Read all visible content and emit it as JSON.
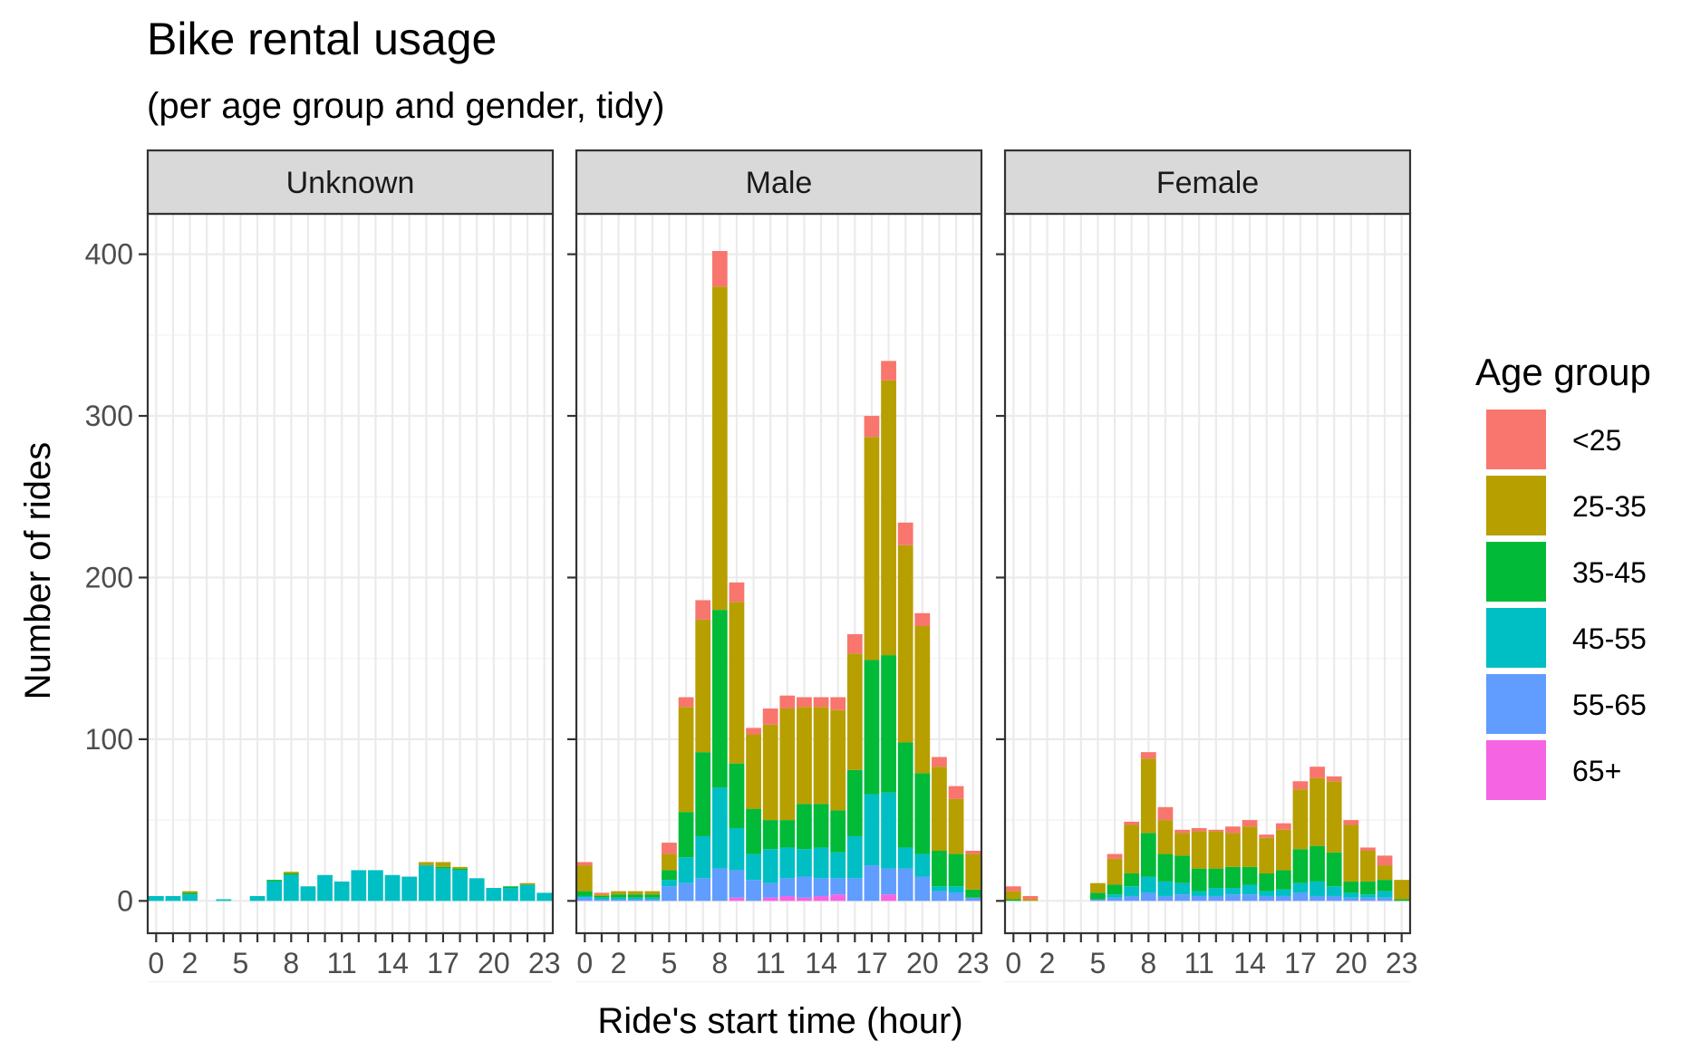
{
  "chart_data": {
    "type": "bar",
    "stacked": true,
    "title": "Bike rental usage",
    "subtitle": "(per age group and gender, tidy)",
    "xlabel": "Ride's start time (hour)",
    "ylabel": "Number of rides",
    "xlim": [
      -0.5,
      23.5
    ],
    "ylim": [
      -20,
      425
    ],
    "x_tick_labels": [
      "0",
      "2",
      "5",
      "8",
      "11",
      "14",
      "17",
      "20",
      "23"
    ],
    "x_tick_values": [
      0,
      2,
      5,
      8,
      11,
      14,
      17,
      20,
      23
    ],
    "y_ticks": [
      0,
      100,
      200,
      300,
      400
    ],
    "y_tick_labels": [
      "0",
      "100",
      "200",
      "300",
      "400"
    ],
    "grid": true,
    "legend": {
      "title": "Age group",
      "position": "right",
      "entries": [
        {
          "label": "<25",
          "color": "#F8766D"
        },
        {
          "label": "25-35",
          "color": "#B79F00"
        },
        {
          "label": "35-45",
          "color": "#00BA38"
        },
        {
          "label": "45-55",
          "color": "#00BFC4"
        },
        {
          "label": "55-65",
          "color": "#619CFF"
        },
        {
          "label": "65+",
          "color": "#F564E3"
        }
      ]
    },
    "stack_order_bottom_to_top": [
      "65+",
      "55-65",
      "45-55",
      "35-45",
      "25-35",
      "<25"
    ],
    "panels": [
      {
        "name": "Unknown",
        "series": [
          {
            "name": "65+",
            "values": [
              0,
              0,
              0,
              0,
              0,
              0,
              0,
              0,
              0,
              0,
              0,
              0,
              0,
              0,
              0,
              0,
              0,
              0,
              0,
              0,
              0,
              0,
              0,
              0
            ]
          },
          {
            "name": "55-65",
            "values": [
              0,
              0,
              0,
              0,
              0,
              0,
              0,
              0,
              0,
              0,
              0,
              0,
              0,
              0,
              0,
              0,
              0,
              0,
              0,
              0,
              0,
              0,
              0,
              0
            ]
          },
          {
            "name": "45-55",
            "values": [
              3,
              3,
              4,
              0,
              1,
              0,
              3,
              12,
              16,
              9,
              16,
              12,
              19,
              19,
              16,
              15,
              22,
              20,
              19,
              14,
              8,
              8,
              10,
              5
            ]
          },
          {
            "name": "35-45",
            "values": [
              0,
              0,
              1,
              0,
              0,
              0,
              0,
              1,
              1,
              0,
              0,
              0,
              0,
              0,
              0,
              0,
              0,
              1,
              1,
              0,
              0,
              1,
              0,
              0
            ]
          },
          {
            "name": "25-35",
            "values": [
              0,
              0,
              1,
              0,
              0,
              0,
              0,
              0,
              1,
              0,
              0,
              0,
              0,
              0,
              0,
              0,
              2,
              3,
              1,
              0,
              0,
              0,
              1,
              0
            ]
          },
          {
            "name": "<25",
            "values": [
              0,
              0,
              0,
              0,
              0,
              0,
              0,
              0,
              0,
              0,
              0,
              0,
              0,
              0,
              0,
              0,
              0,
              0,
              0,
              0,
              0,
              0,
              0,
              0
            ]
          }
        ]
      },
      {
        "name": "Male",
        "series": [
          {
            "name": "65+",
            "values": [
              0,
              0,
              0,
              0,
              0,
              0,
              0,
              0,
              0,
              2,
              0,
              2,
              3,
              2,
              3,
              4,
              0,
              0,
              4,
              0,
              0,
              0,
              0,
              0
            ]
          },
          {
            "name": "55-65",
            "values": [
              2,
              1,
              1,
              1,
              1,
              9,
              11,
              14,
              20,
              17,
              13,
              9,
              11,
              13,
              11,
              10,
              14,
              22,
              16,
              20,
              15,
              6,
              5,
              2
            ]
          },
          {
            "name": "45-55",
            "values": [
              1,
              1,
              1,
              1,
              1,
              4,
              16,
              26,
              50,
              26,
              16,
              21,
              19,
              17,
              19,
              16,
              26,
              44,
              47,
              13,
              14,
              3,
              4,
              0
            ]
          },
          {
            "name": "35-45",
            "values": [
              3,
              1,
              2,
              2,
              2,
              6,
              28,
              52,
              110,
              40,
              28,
              18,
              17,
              28,
              27,
              26,
              41,
              83,
              85,
              65,
              50,
              22,
              20,
              5
            ]
          },
          {
            "name": "25-35",
            "values": [
              16,
              1,
              2,
              2,
              2,
              10,
              65,
              82,
              200,
              100,
              46,
              59,
              69,
              60,
              60,
              62,
              72,
              138,
              170,
              122,
              91,
              52,
              34,
              22
            ]
          },
          {
            "name": "<25",
            "values": [
              2,
              1,
              0,
              0,
              0,
              7,
              6,
              12,
              22,
              12,
              4,
              10,
              8,
              6,
              6,
              8,
              12,
              13,
              12,
              14,
              8,
              6,
              8,
              2
            ]
          }
        ]
      },
      {
        "name": "Female",
        "series": [
          {
            "name": "65+",
            "values": [
              0,
              0,
              0,
              0,
              0,
              0,
              0,
              0,
              0,
              0,
              0,
              0,
              0,
              0,
              0,
              0,
              0,
              0,
              0,
              0,
              0,
              0,
              0,
              0
            ]
          },
          {
            "name": "55-65",
            "values": [
              0,
              0,
              0,
              0,
              0,
              1,
              2,
              3,
              5,
              3,
              4,
              3,
              3,
              4,
              4,
              3,
              3,
              5,
              3,
              3,
              2,
              2,
              2,
              0
            ]
          },
          {
            "name": "45-55",
            "values": [
              0,
              0,
              0,
              0,
              0,
              0,
              2,
              6,
              10,
              9,
              7,
              3,
              5,
              4,
              6,
              3,
              4,
              6,
              9,
              6,
              3,
              2,
              4,
              0
            ]
          },
          {
            "name": "35-45",
            "values": [
              1,
              0,
              0,
              0,
              0,
              4,
              6,
              8,
              27,
              17,
              17,
              14,
              12,
              13,
              11,
              11,
              12,
              21,
              22,
              21,
              7,
              8,
              7,
              1
            ]
          },
          {
            "name": "25-35",
            "values": [
              5,
              1,
              0,
              0,
              0,
              6,
              16,
              30,
              46,
              21,
              14,
              23,
              23,
              21,
              25,
              22,
              25,
              37,
              42,
              44,
              35,
              19,
              9,
              12
            ]
          },
          {
            "name": "<25",
            "values": [
              3,
              2,
              0,
              0,
              0,
              0,
              3,
              2,
              4,
              8,
              2,
              2,
              1,
              4,
              4,
              2,
              4,
              5,
              7,
              3,
              3,
              2,
              6,
              0
            ]
          }
        ]
      }
    ]
  }
}
